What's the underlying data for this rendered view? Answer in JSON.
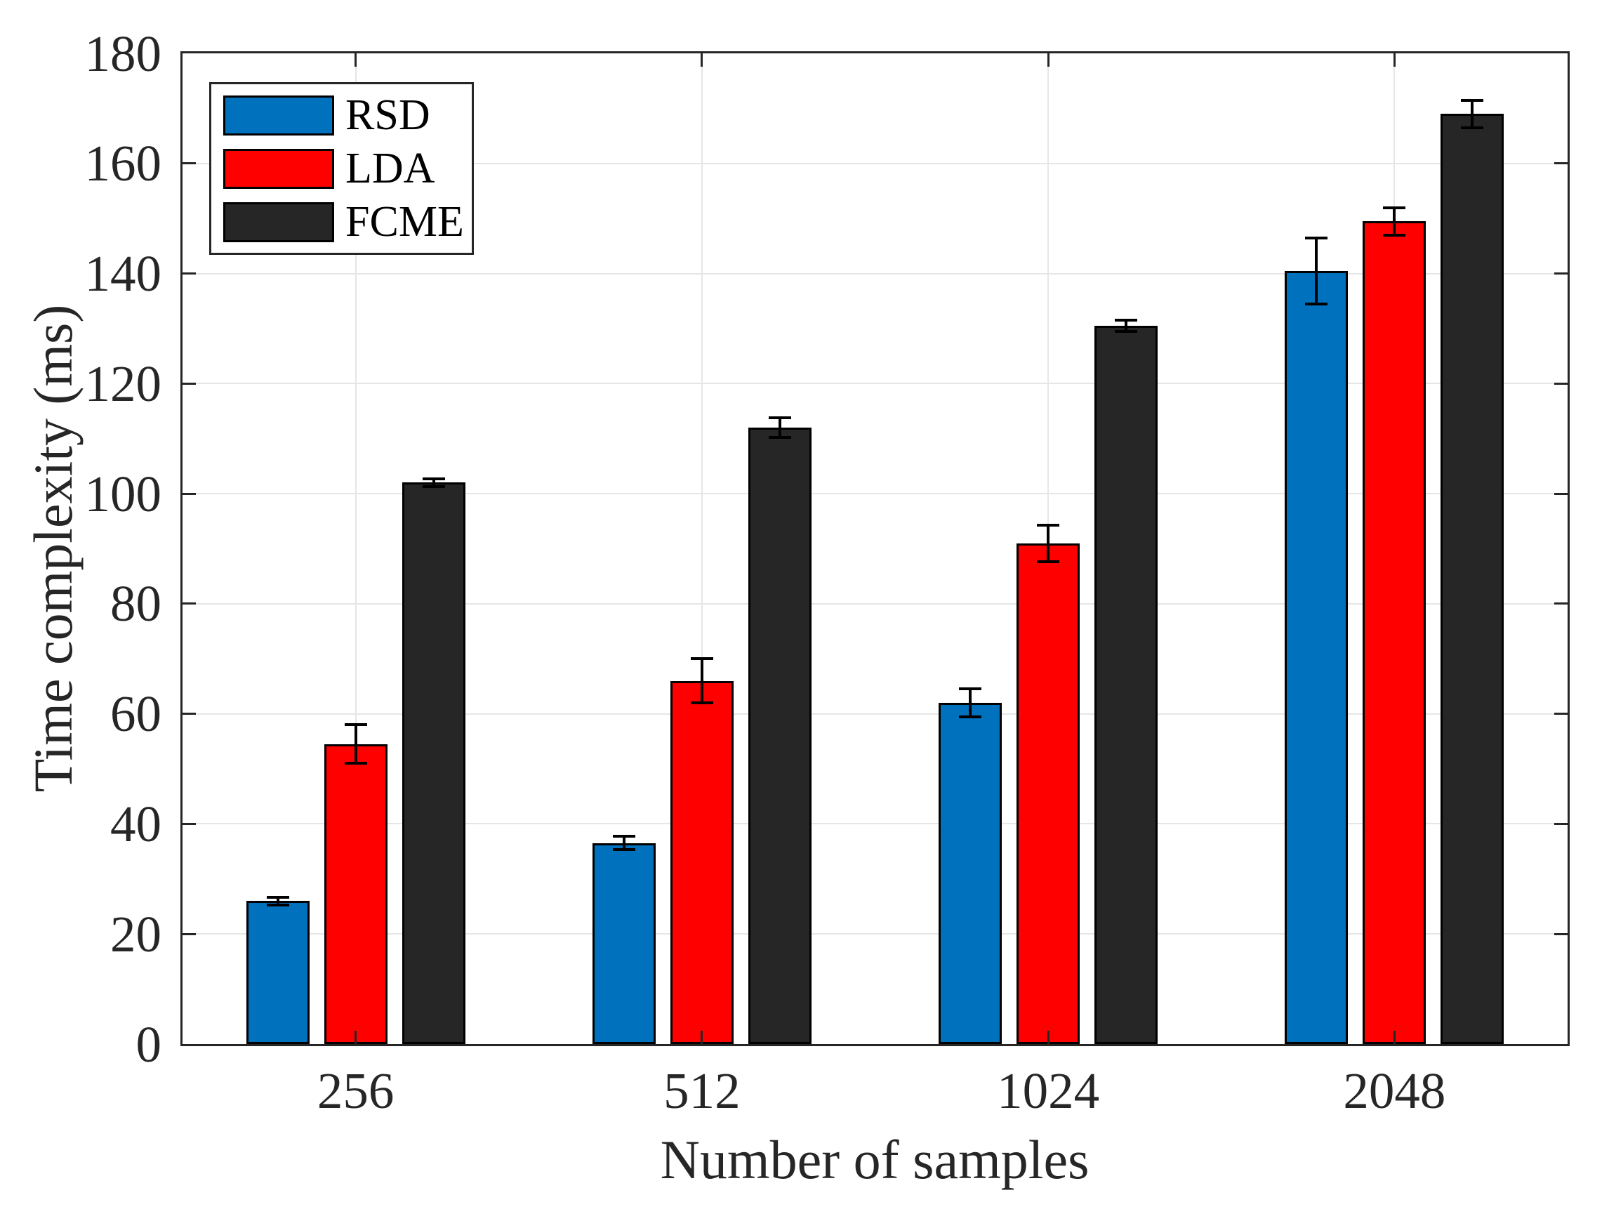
{
  "chart_data": {
    "type": "bar",
    "title": "",
    "xlabel": "Number of samples",
    "ylabel": "Time complexity (ms)",
    "categories": [
      "256",
      "512",
      "1024",
      "2048"
    ],
    "series": [
      {
        "name": "RSD",
        "color": "#0072BD",
        "values": [
          26,
          36.5,
          62,
          140.5
        ],
        "errors": [
          0.7,
          1.2,
          2.5,
          6
        ]
      },
      {
        "name": "LDA",
        "color": "#FF0000",
        "values": [
          54.5,
          66,
          91,
          149.5
        ],
        "errors": [
          3.5,
          4,
          3.3,
          2.5
        ]
      },
      {
        "name": "FCME",
        "color": "#262626",
        "values": [
          102,
          112,
          130.5,
          169
        ],
        "errors": [
          0.7,
          1.8,
          1,
          2.5
        ]
      }
    ],
    "ylim": [
      0,
      180
    ],
    "yticks": [
      "0",
      "20",
      "40",
      "60",
      "80",
      "100",
      "120",
      "140",
      "160",
      "180"
    ],
    "ytick_step": 20,
    "grid": "on",
    "error_bars": true,
    "legend_position": "top-left",
    "colors": {
      "axis": "#262626",
      "grid": "#e6e6e6",
      "background": "#ffffff",
      "error_bar": "#000000"
    }
  }
}
